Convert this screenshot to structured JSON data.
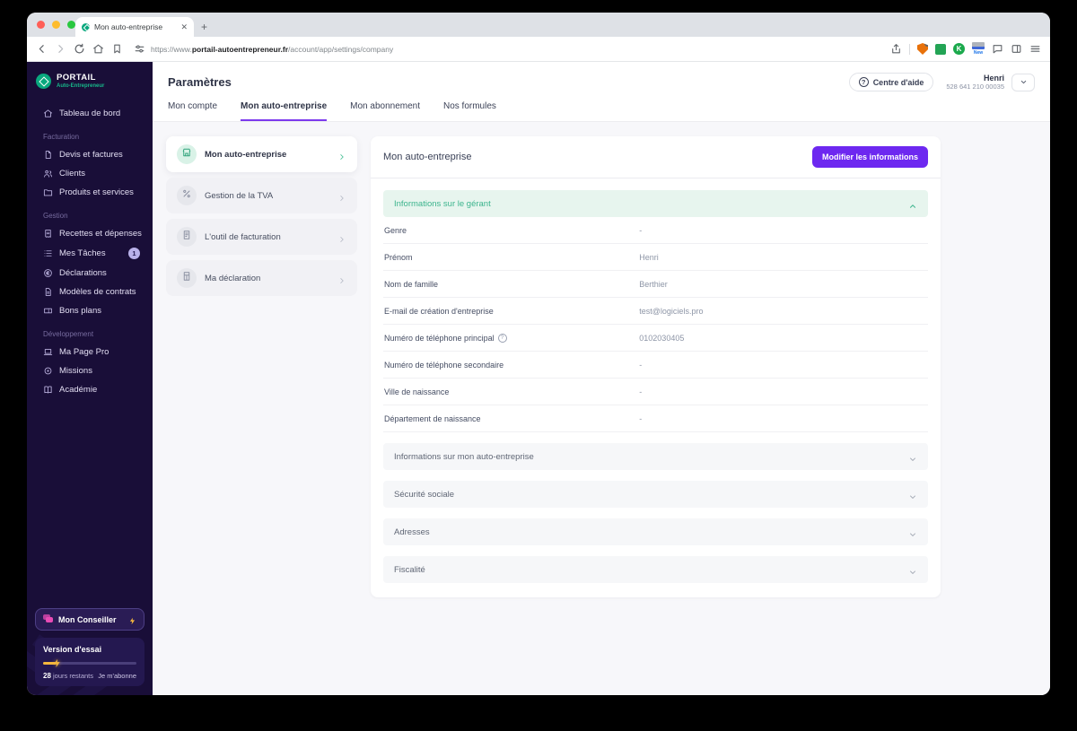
{
  "browser": {
    "tab_title": "Mon auto-entreprise",
    "url_scheme": "https://www.",
    "url_domain": "portail-autoentrepreneur.fr",
    "url_path": "/account/app/settings/company",
    "extension_new_label": "New",
    "extension_k_label": "K"
  },
  "sidebar": {
    "logo_title": "PORTAIL",
    "logo_subtitle": "Auto-Entrepreneur",
    "sections": [
      {
        "label": "",
        "items": [
          {
            "label": "Tableau de bord",
            "icon": "home"
          }
        ]
      },
      {
        "label": "Facturation",
        "items": [
          {
            "label": "Devis et factures",
            "icon": "doc"
          },
          {
            "label": "Clients",
            "icon": "users"
          },
          {
            "label": "Produits et services",
            "icon": "folder"
          }
        ]
      },
      {
        "label": "Gestion",
        "items": [
          {
            "label": "Recettes et dépenses",
            "icon": "receipt"
          },
          {
            "label": "Mes Tâches",
            "icon": "tasks",
            "badge": "1"
          },
          {
            "label": "Déclarations",
            "icon": "euro"
          },
          {
            "label": "Modèles de contrats",
            "icon": "contract"
          },
          {
            "label": "Bons plans",
            "icon": "ticket"
          }
        ]
      },
      {
        "label": "Développement",
        "items": [
          {
            "label": "Ma Page Pro",
            "icon": "laptop"
          },
          {
            "label": "Missions",
            "icon": "target"
          },
          {
            "label": "Académie",
            "icon": "book"
          }
        ]
      }
    ],
    "conseiller_label": "Mon Conseiller",
    "trial": {
      "title": "Version d'essai",
      "days_value": "28",
      "days_label": "jours restants",
      "cta": "Je m'abonne"
    }
  },
  "header": {
    "title": "Paramètres",
    "tabs": [
      {
        "label": "Mon compte",
        "active": false
      },
      {
        "label": "Mon auto-entreprise",
        "active": true
      },
      {
        "label": "Mon abonnement",
        "active": false
      },
      {
        "label": "Nos formules",
        "active": false
      }
    ],
    "help_button": "Centre d'aide",
    "user_name": "Henri",
    "user_siret": "528 641 210 00035"
  },
  "settings_nav": [
    {
      "label": "Mon auto-entreprise",
      "icon": "store",
      "active": true
    },
    {
      "label": "Gestion de la TVA",
      "icon": "percent",
      "active": false
    },
    {
      "label": "L'outil de facturation",
      "icon": "invoice",
      "active": false
    },
    {
      "label": "Ma déclaration",
      "icon": "calc",
      "active": false
    }
  ],
  "panel": {
    "title": "Mon auto-entreprise",
    "edit_button": "Modifier les informations",
    "open_section": {
      "title": "Informations sur le gérant",
      "fields": [
        {
          "label": "Genre",
          "value": "-"
        },
        {
          "label": "Prénom",
          "value": "Henri"
        },
        {
          "label": "Nom de famille",
          "value": "Berthier"
        },
        {
          "label": "E-mail de création d'entreprise",
          "value": "test@logiciels.pro"
        },
        {
          "label": "Numéro de téléphone principal",
          "value": "0102030405",
          "help": true
        },
        {
          "label": "Numéro de téléphone secondaire",
          "value": "-"
        },
        {
          "label": "Ville de naissance",
          "value": "-"
        },
        {
          "label": "Département de naissance",
          "value": "-"
        }
      ]
    },
    "collapsed_sections": [
      "Informations sur mon auto-entreprise",
      "Sécurité sociale",
      "Adresses",
      "Fiscalité"
    ]
  },
  "colors": {
    "accent_purple": "#6d28f0",
    "tab_underline": "#7C3AED",
    "brand_green": "#0aa87e",
    "accordion_green": "#3cb48d",
    "sidebar_bg": "#190e38",
    "bolt_yellow": "#f5b73d",
    "conseiller_pink": "#e84bb5"
  }
}
